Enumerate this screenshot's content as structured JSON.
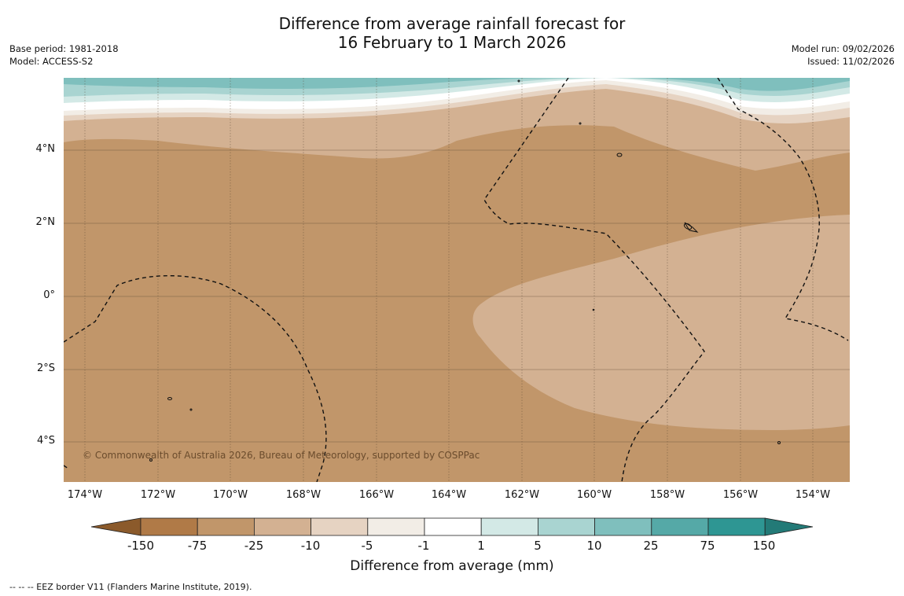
{
  "title": {
    "line1": "Difference from average rainfall forecast for",
    "line2": "16 February to 1 March 2026"
  },
  "meta_left": {
    "base_period": "Base period: 1981-2018",
    "model": "Model: ACCESS-S2"
  },
  "meta_right": {
    "model_run": "Model run: 09/02/2026",
    "issued": "Issued: 11/02/2026"
  },
  "map": {
    "lat_labels": [
      "4°N",
      "2°N",
      "0°",
      "2°S",
      "4°S"
    ],
    "lon_labels": [
      "174°W",
      "172°W",
      "170°W",
      "168°W",
      "166°W",
      "164°W",
      "162°W",
      "160°W",
      "158°W",
      "156°W",
      "154°W"
    ],
    "copyright": "© Commonwealth of Australia 2026, Bureau of Meteorology, supported by COSPPac"
  },
  "colorbar": {
    "ticks": [
      "-150",
      "-75",
      "-25",
      "-10",
      "-5",
      "-1",
      "1",
      "5",
      "10",
      "25",
      "75",
      "150"
    ],
    "colors": [
      "#8b5a2b",
      "#b07a47",
      "#c1966a",
      "#d3b192",
      "#e6d3c2",
      "#f2ede6",
      "#ffffff",
      "#d3e9e6",
      "#a9d4d1",
      "#7fbfbd",
      "#55a9a7",
      "#2e9693",
      "#237a77"
    ],
    "label": "Difference from average (mm)"
  },
  "footer": {
    "legend": "--  --  -- EEZ border V11 (Flanders Marine Institute, 2019)."
  }
}
